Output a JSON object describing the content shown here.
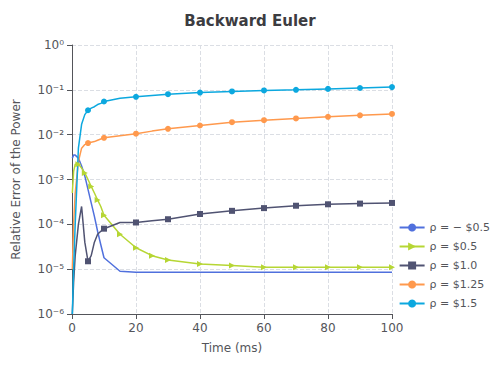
{
  "chart_data": {
    "type": "line",
    "title": "Backward Euler",
    "xlabel": "Time (ms)",
    "ylabel": "Relative Error of the Power",
    "log": "y",
    "grid": true,
    "legend": "lower right",
    "xlim": [
      0,
      100
    ],
    "xticks": [
      0,
      20,
      40,
      60,
      80,
      100
    ],
    "ylim": [
      1e-06,
      1
    ],
    "yticks": [
      {
        "value": 1e-06,
        "label": "10⁻⁶"
      },
      {
        "value": 1e-05,
        "label": "10⁻⁵"
      },
      {
        "value": 0.0001,
        "label": "10⁻⁴"
      },
      {
        "value": 0.001,
        "label": "10⁻³"
      },
      {
        "value": 0.01,
        "label": "10⁻²"
      },
      {
        "value": 0.1,
        "label": "10⁻¹"
      },
      {
        "value": 1,
        "label": "10⁰"
      }
    ],
    "x": [
      0.1,
      0.5,
      1,
      2,
      3,
      4,
      5,
      6,
      7,
      8,
      9,
      10,
      15,
      20,
      25,
      30,
      40,
      50,
      60,
      70,
      80,
      90,
      100
    ],
    "series": [
      {
        "name": "ρ = − $0.5",
        "values": [
          0.003,
          0.0035,
          0.0035,
          0.003,
          0.002,
          0.0012,
          0.0006,
          0.0003,
          0.00015,
          7e-05,
          3.5e-05,
          1.8e-05,
          9e-06,
          8.5e-06,
          8.5e-06,
          8.5e-06,
          8.5e-06,
          8.5e-06,
          8.5e-06,
          8.5e-06,
          8.5e-06,
          8.5e-06,
          8.5e-06
        ]
      },
      {
        "name": "ρ = $0.5",
        "marker": "triangle-right",
        "marker_x": [
          2,
          4,
          6,
          8,
          10,
          15,
          20,
          25,
          30,
          40,
          50,
          60,
          70,
          80,
          90,
          100
        ],
        "values": [
          0.0005,
          0.0015,
          0.0022,
          0.0022,
          0.0018,
          0.0014,
          0.001,
          0.0007,
          0.0005,
          0.00035,
          0.00025,
          0.00016,
          6e-05,
          3e-05,
          2e-05,
          1.6e-05,
          1.3e-05,
          1.2e-05,
          1.1e-05,
          1.1e-05,
          1.1e-05,
          1.1e-05,
          1.1e-05
        ]
      },
      {
        "name": "ρ = $1.0",
        "marker": "square",
        "marker_x": [
          5,
          10,
          20,
          30,
          40,
          50,
          60,
          70,
          80,
          90,
          100
        ],
        "values": [
          1e-06,
          5e-06,
          2e-05,
          0.0001,
          0.00025,
          4e-05,
          1.5e-05,
          2e-05,
          4e-05,
          6e-05,
          7e-05,
          8e-05,
          0.00011,
          0.00011,
          0.00012,
          0.00013,
          0.00017,
          0.0002,
          0.00023,
          0.00026,
          0.00028,
          0.00029,
          0.0003
        ]
      },
      {
        "name": "ρ = $1.25",
        "marker": "circle",
        "marker_x": [
          5,
          10,
          20,
          30,
          40,
          50,
          60,
          70,
          80,
          90,
          100
        ],
        "values": [
          1e-05,
          0.0001,
          0.0005,
          0.0025,
          0.005,
          0.006,
          0.0065,
          0.0068,
          0.007,
          0.0075,
          0.008,
          0.0085,
          0.0095,
          0.0105,
          0.012,
          0.0135,
          0.016,
          0.019,
          0.021,
          0.023,
          0.025,
          0.027,
          0.029
        ]
      },
      {
        "name": "ρ = $1.5",
        "marker": "circle",
        "marker_x": [
          5,
          10,
          20,
          30,
          40,
          50,
          60,
          70,
          80,
          90,
          100
        ],
        "values": [
          1e-06,
          1e-05,
          0.0001,
          0.005,
          0.017,
          0.028,
          0.035,
          0.039,
          0.042,
          0.047,
          0.05,
          0.055,
          0.065,
          0.07,
          0.075,
          0.08,
          0.087,
          0.092,
          0.097,
          0.1,
          0.105,
          0.11,
          0.115
        ]
      }
    ]
  }
}
